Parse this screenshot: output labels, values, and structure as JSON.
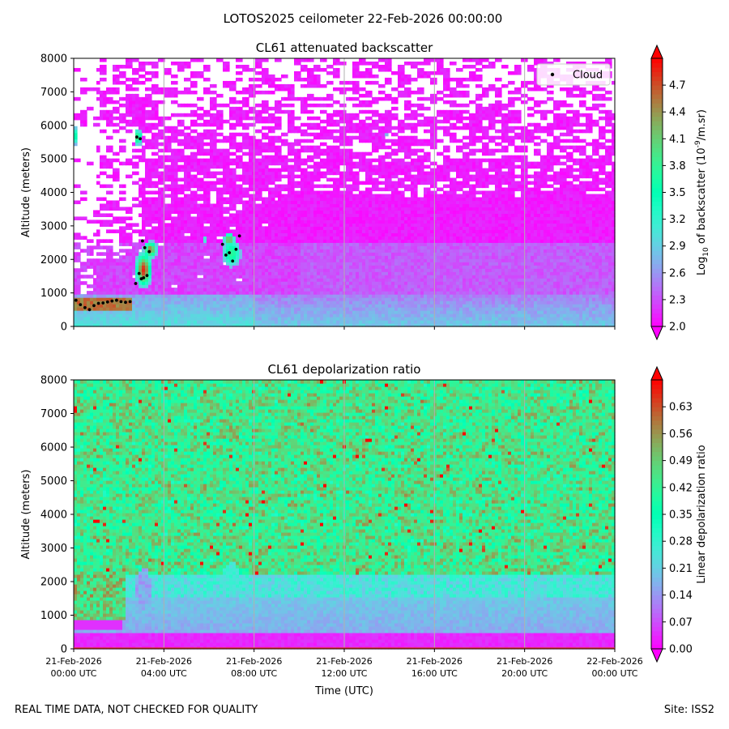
{
  "figure": {
    "title": "LOTOS2025 ceilometer 22-Feb-2026 00:00:00",
    "footer_left": "REAL TIME DATA, NOT CHECKED FOR QUALITY",
    "footer_right": "Site: ISS2"
  },
  "chart_data": [
    {
      "type": "heatmap",
      "title": "CL61 attenuated backscatter",
      "xlabel": "",
      "ylabel": "Altitude (meters)",
      "x_range": [
        "21-Feb-2026 00:00 UTC",
        "22-Feb-2026 00:00 UTC"
      ],
      "ylim": [
        0,
        8000
      ],
      "y_ticks": [
        0,
        1000,
        2000,
        3000,
        4000,
        5000,
        6000,
        7000,
        8000
      ],
      "x_ticks": [
        {
          "date": "21-Feb-2026",
          "time": "00:00 UTC"
        },
        {
          "date": "21-Feb-2026",
          "time": "04:00 UTC"
        },
        {
          "date": "21-Feb-2026",
          "time": "08:00 UTC"
        },
        {
          "date": "21-Feb-2026",
          "time": "12:00 UTC"
        },
        {
          "date": "21-Feb-2026",
          "time": "16:00 UTC"
        },
        {
          "date": "21-Feb-2026",
          "time": "20:00 UTC"
        },
        {
          "date": "22-Feb-2026",
          "time": "00:00 UTC"
        }
      ],
      "x_tick_labels_visible": false,
      "grid": "vertical",
      "colorbar": {
        "label": "Log10 of backscatter (10^-9/m.sr)",
        "range": [
          2.0,
          5.0
        ],
        "ticks": [
          "2.0",
          "2.3",
          "2.6",
          "2.9",
          "3.2",
          "3.5",
          "3.8",
          "4.1",
          "4.4",
          "4.7"
        ],
        "colormap": "rainbow",
        "extend": "both"
      },
      "legend": {
        "position": "top-right",
        "entries": [
          {
            "label": "Cloud",
            "marker": "black dot"
          }
        ]
      },
      "cloud_points": [
        {
          "t": 0.1,
          "alt": 780
        },
        {
          "t": 0.3,
          "alt": 650
        },
        {
          "t": 0.5,
          "alt": 560
        },
        {
          "t": 0.7,
          "alt": 500
        },
        {
          "t": 0.9,
          "alt": 620
        },
        {
          "t": 1.1,
          "alt": 690
        },
        {
          "t": 1.3,
          "alt": 700
        },
        {
          "t": 1.5,
          "alt": 730
        },
        {
          "t": 1.7,
          "alt": 760
        },
        {
          "t": 1.9,
          "alt": 780
        },
        {
          "t": 2.1,
          "alt": 740
        },
        {
          "t": 2.3,
          "alt": 720
        },
        {
          "t": 2.5,
          "alt": 740
        },
        {
          "t": 2.75,
          "alt": 1280
        },
        {
          "t": 2.9,
          "alt": 1580
        },
        {
          "t": 3.0,
          "alt": 1420
        },
        {
          "t": 3.1,
          "alt": 1450
        },
        {
          "t": 3.25,
          "alt": 1520
        },
        {
          "t": 3.05,
          "alt": 2550
        },
        {
          "t": 3.15,
          "alt": 2350
        },
        {
          "t": 3.35,
          "alt": 2230
        },
        {
          "t": 2.8,
          "alt": 5650
        },
        {
          "t": 2.95,
          "alt": 5600
        },
        {
          "t": 6.6,
          "alt": 2450
        },
        {
          "t": 6.75,
          "alt": 2130
        },
        {
          "t": 6.9,
          "alt": 2200
        },
        {
          "t": 7.05,
          "alt": 1950
        },
        {
          "t": 7.2,
          "alt": 2300
        },
        {
          "t": 7.35,
          "alt": 2700
        }
      ]
    },
    {
      "type": "heatmap",
      "title": "CL61 depolarization ratio",
      "xlabel": "Time (UTC)",
      "ylabel": "Altitude (meters)",
      "x_range": [
        "21-Feb-2026 00:00 UTC",
        "22-Feb-2026 00:00 UTC"
      ],
      "ylim": [
        0,
        8000
      ],
      "y_ticks": [
        0,
        1000,
        2000,
        3000,
        4000,
        5000,
        6000,
        7000,
        8000
      ],
      "x_ticks": [
        {
          "date": "21-Feb-2026",
          "time": "00:00 UTC"
        },
        {
          "date": "21-Feb-2026",
          "time": "04:00 UTC"
        },
        {
          "date": "21-Feb-2026",
          "time": "08:00 UTC"
        },
        {
          "date": "21-Feb-2026",
          "time": "12:00 UTC"
        },
        {
          "date": "21-Feb-2026",
          "time": "16:00 UTC"
        },
        {
          "date": "21-Feb-2026",
          "time": "20:00 UTC"
        },
        {
          "date": "22-Feb-2026",
          "time": "00:00 UTC"
        }
      ],
      "x_tick_labels_visible": true,
      "grid": "vertical",
      "colorbar": {
        "label": "Linear depolarization ratio",
        "range": [
          0.0,
          0.7
        ],
        "ticks": [
          "0.00",
          "0.07",
          "0.14",
          "0.21",
          "0.28",
          "0.35",
          "0.42",
          "0.49",
          "0.56",
          "0.63"
        ],
        "colormap": "rainbow",
        "extend": "both"
      }
    }
  ]
}
